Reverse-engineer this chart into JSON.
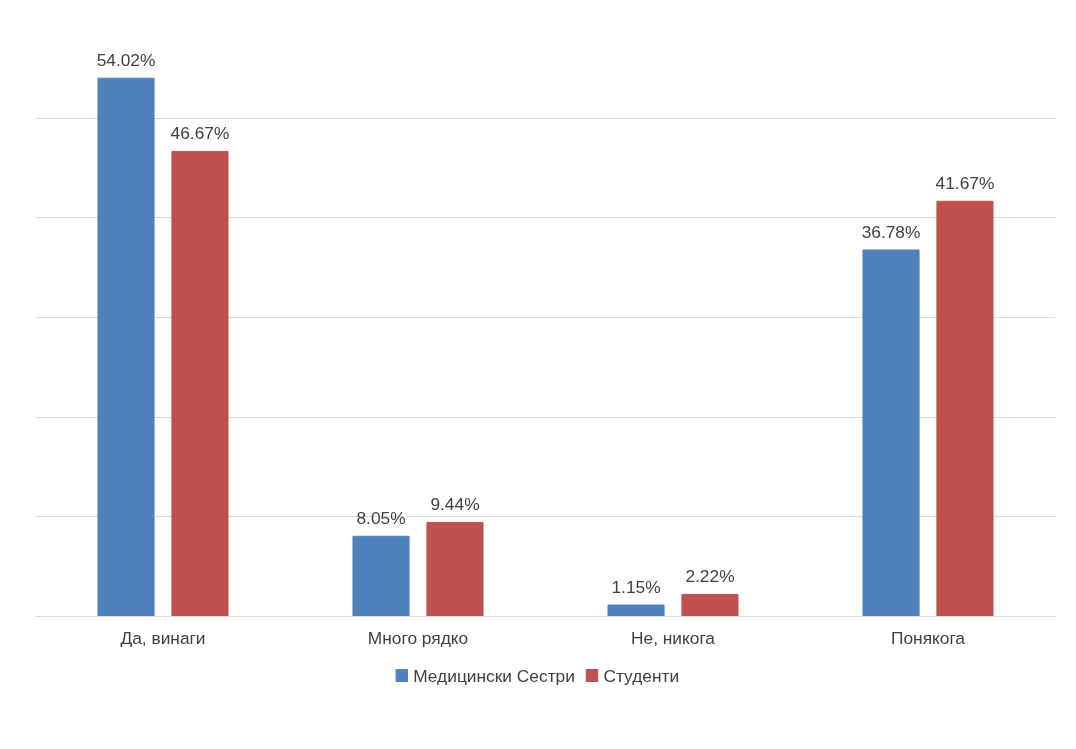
{
  "chart_data": {
    "type": "bar",
    "categories": [
      "Да, винаги",
      "Много рядко",
      "Не, никога",
      "Понякога"
    ],
    "series": [
      {
        "name": "Медицински Сестри",
        "color": "#4f81bd",
        "values": [
          54.02,
          8.05,
          1.15,
          36.78
        ],
        "value_labels": [
          "54.02%",
          "8.05%",
          "1.15%",
          "36.78%"
        ]
      },
      {
        "name": "Студенти",
        "color": "#c0504d",
        "values": [
          46.67,
          9.44,
          2.22,
          41.67
        ],
        "value_labels": [
          "46.67%",
          "9.44%",
          "2.22%",
          "41.67%"
        ]
      }
    ],
    "tick_labels": "x",
    "grid": "y",
    "legend": "bottom"
  }
}
